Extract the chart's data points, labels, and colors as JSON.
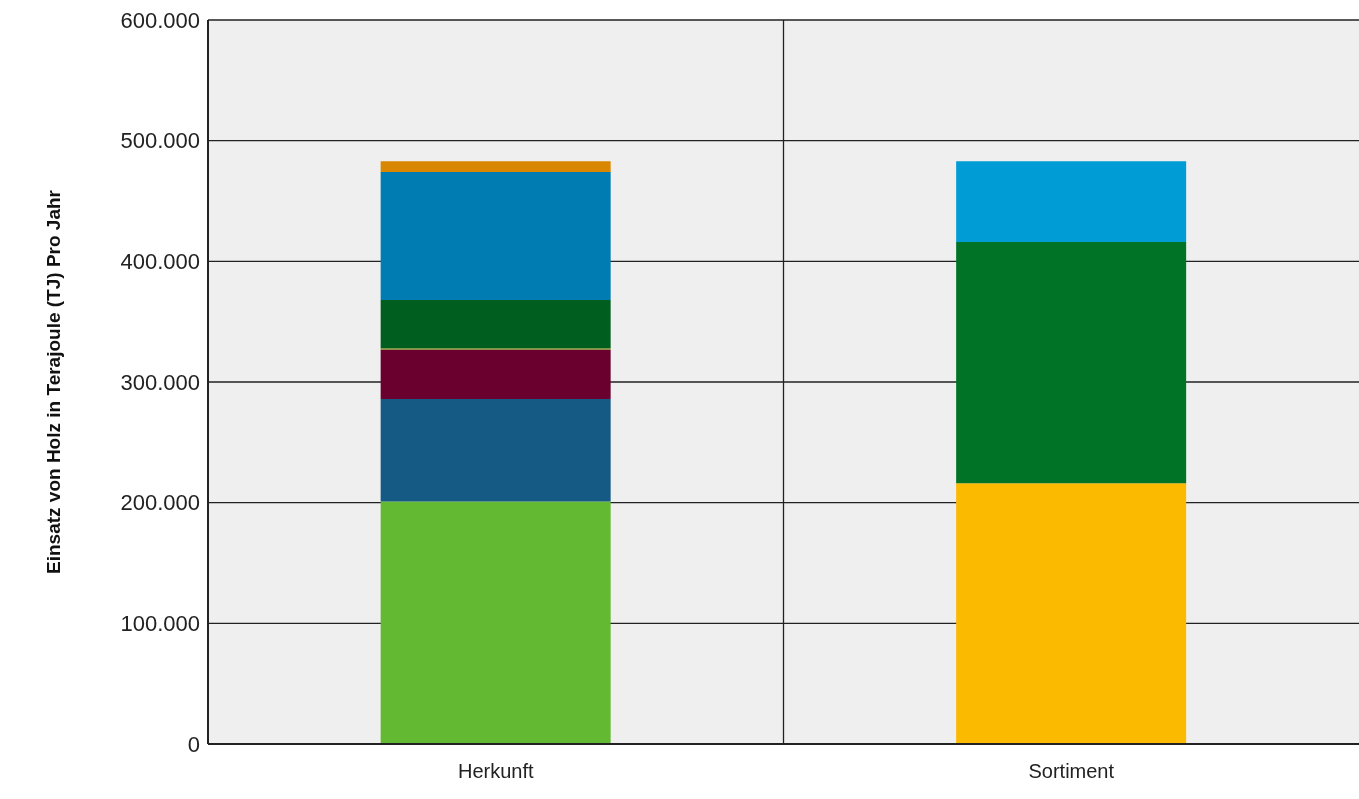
{
  "chart_data": {
    "type": "bar",
    "ylabel": "Einsatz von Holz in Terajoule (TJ) Pro Jahr",
    "categories": [
      "Herkunft",
      "Sortiment"
    ],
    "stacked": true,
    "series": [
      {
        "color": "#63b931",
        "values": [
          201000,
          null
        ]
      },
      {
        "color": "#155a85",
        "values": [
          85000,
          null
        ]
      },
      {
        "color": "#69002e",
        "values": [
          41000,
          null
        ]
      },
      {
        "color": "#8a9a1a",
        "values": [
          1000,
          null
        ]
      },
      {
        "color": "#005f1e",
        "values": [
          40000,
          null
        ]
      },
      {
        "color": "#007cb2",
        "values": [
          106000,
          null
        ]
      },
      {
        "color": "#d98700",
        "values": [
          9000,
          null
        ]
      },
      {
        "color": "#fbba00",
        "values": [
          null,
          216000
        ]
      },
      {
        "color": "#007327",
        "values": [
          null,
          200000
        ]
      },
      {
        "color": "#009cd6",
        "values": [
          null,
          67000
        ]
      }
    ],
    "ylim": [
      0,
      600000
    ],
    "yticks": [
      {
        "value": 0,
        "label": "0"
      },
      {
        "value": 100000,
        "label": "100.000"
      },
      {
        "value": 200000,
        "label": "200.000"
      },
      {
        "value": 300000,
        "label": "300.000"
      },
      {
        "value": 400000,
        "label": "400.000"
      },
      {
        "value": 500000,
        "label": "500.000"
      },
      {
        "value": 600000,
        "label": "600.000"
      }
    ],
    "grid": true
  }
}
